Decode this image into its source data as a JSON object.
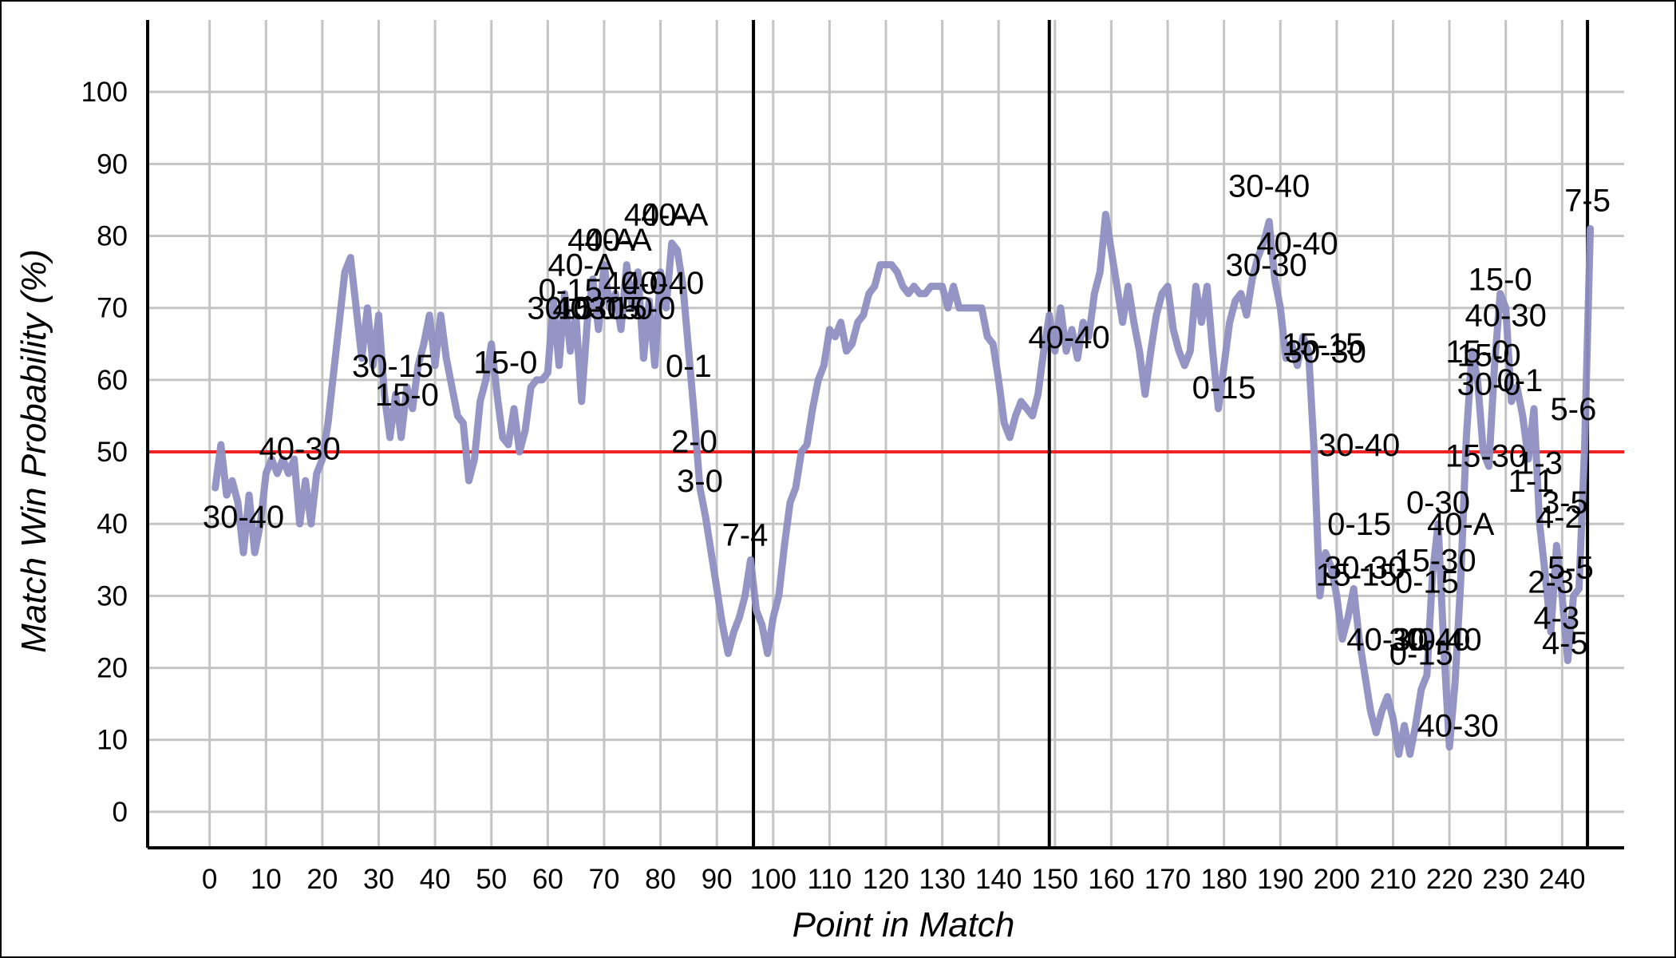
{
  "chart_data": {
    "type": "line",
    "xlabel": "Point in Match",
    "ylabel": "Match Win Probability (%)",
    "xlim": [
      -11,
      251
    ],
    "ylim": [
      -5,
      110
    ],
    "x_ticks": [
      0,
      10,
      20,
      30,
      40,
      50,
      60,
      70,
      80,
      90,
      100,
      110,
      120,
      130,
      140,
      150,
      160,
      170,
      180,
      190,
      200,
      210,
      220,
      230,
      240
    ],
    "y_ticks": [
      0,
      10,
      20,
      30,
      40,
      50,
      60,
      70,
      80,
      90,
      100
    ],
    "grid": true,
    "reference_line": {
      "y": 50,
      "color": "#ee2222"
    },
    "set_boundaries": [
      96.5,
      149,
      244.5
    ],
    "series_color": "#8f8fc2",
    "series": [
      {
        "x": [
          1,
          2,
          3,
          4,
          5,
          6,
          7,
          8,
          9,
          10,
          11,
          12,
          13,
          14,
          15,
          16,
          17,
          18,
          19,
          20,
          21,
          22,
          23,
          24,
          25,
          26,
          27,
          28,
          29,
          30,
          31,
          32,
          33,
          34,
          35,
          36,
          37,
          38,
          39,
          40,
          41,
          42,
          43,
          44,
          45,
          46,
          47,
          48,
          49,
          50,
          51,
          52,
          53,
          54,
          55,
          56,
          57,
          58,
          59,
          60,
          61,
          62,
          63,
          64,
          65,
          66,
          67,
          68,
          69,
          70,
          71,
          72,
          73,
          74,
          75,
          76,
          77,
          78,
          79,
          80,
          81,
          82,
          83,
          84,
          85,
          86,
          87,
          88,
          89,
          90,
          91,
          92,
          93,
          94,
          95,
          96,
          97,
          98,
          99,
          100,
          101,
          102,
          103,
          104,
          105,
          106,
          107,
          108,
          109,
          110,
          111,
          112,
          113,
          114,
          115,
          116,
          117,
          118,
          119,
          120,
          121,
          122,
          123,
          124,
          125,
          126,
          127,
          128,
          129,
          130,
          131,
          132,
          133,
          134,
          135,
          136,
          137,
          138,
          139,
          140,
          141,
          142,
          143,
          144,
          145,
          146,
          147,
          148,
          149,
          150,
          151,
          152,
          153,
          154,
          155,
          156,
          157,
          158,
          159,
          160,
          161,
          162,
          163,
          164,
          165,
          166,
          167,
          168,
          169,
          170,
          171,
          172,
          173,
          174,
          175,
          176,
          177,
          178,
          179,
          180,
          181,
          182,
          183,
          184,
          185,
          186,
          187,
          188,
          189,
          190,
          191,
          192,
          193,
          194,
          195,
          196,
          197,
          198,
          199,
          200,
          201,
          202,
          203,
          204,
          205,
          206,
          207,
          208,
          209,
          210,
          211,
          212,
          213,
          214,
          215,
          216,
          217,
          218,
          219,
          220,
          221,
          222,
          223,
          224,
          225,
          226,
          227,
          228,
          229,
          230,
          231,
          232,
          233,
          234,
          235,
          236,
          237,
          238,
          239,
          240,
          241,
          242,
          243,
          244,
          245
        ],
        "y": [
          45,
          51,
          44,
          46,
          43,
          36,
          44,
          36,
          40,
          47,
          49,
          47,
          49,
          47,
          49,
          40,
          46,
          40,
          47,
          49,
          54,
          61,
          68,
          75,
          77,
          70,
          63,
          70,
          62,
          69,
          58,
          52,
          58,
          52,
          59,
          56,
          62,
          65,
          69,
          62,
          69,
          63,
          59,
          55,
          54,
          46,
          49,
          57,
          60,
          65,
          58,
          52,
          51,
          56,
          50,
          53,
          59,
          60,
          60,
          61,
          71,
          62,
          72,
          64,
          69,
          57,
          68,
          74,
          67,
          76,
          70,
          72,
          67,
          76,
          70,
          75,
          63,
          71,
          62,
          75,
          70,
          79,
          78,
          73,
          64,
          55,
          45,
          41,
          36,
          31,
          26,
          22,
          25,
          27,
          30,
          35,
          28,
          26,
          22,
          27,
          30,
          37,
          43,
          45,
          50,
          51,
          56,
          60,
          62,
          67,
          66,
          68,
          64,
          65,
          68,
          69,
          72,
          73,
          76,
          76,
          76,
          75,
          73,
          72,
          73,
          72,
          72,
          73,
          73,
          73,
          70,
          73,
          70,
          70,
          70,
          70,
          70,
          66,
          65,
          60,
          54,
          52,
          55,
          57,
          56,
          55,
          58,
          64,
          69,
          64,
          70,
          64,
          67,
          63,
          68,
          66,
          72,
          75,
          83,
          78,
          73,
          68,
          73,
          68,
          64,
          58,
          64,
          69,
          72,
          73,
          67,
          64,
          62,
          64,
          73,
          68,
          73,
          64,
          56,
          62,
          68,
          71,
          72,
          69,
          74,
          77,
          79,
          82,
          74,
          70,
          63,
          65,
          62,
          66,
          64,
          50,
          30,
          36,
          34,
          30,
          24,
          27,
          31,
          24,
          19,
          14,
          11,
          14,
          16,
          13,
          8,
          12,
          8,
          12,
          17,
          19,
          33,
          40,
          23,
          9,
          18,
          32,
          52,
          64,
          60,
          50,
          48,
          62,
          72,
          70,
          57,
          59,
          55,
          49,
          56,
          40,
          33,
          25,
          37,
          30,
          21,
          30,
          31,
          51,
          81
        ]
      }
    ],
    "annotations": [
      {
        "text": "30-40",
        "x": 6,
        "y": 41
      },
      {
        "text": "40-30",
        "x": 16,
        "y": 50.5
      },
      {
        "text": "30-15",
        "x": 32.5,
        "y": 62
      },
      {
        "text": "15-0",
        "x": 35,
        "y": 58
      },
      {
        "text": "15-0",
        "x": 52.5,
        "y": 62.5
      },
      {
        "text": "30-0",
        "x": 62,
        "y": 70
      },
      {
        "text": "0-15",
        "x": 64,
        "y": 72.5
      },
      {
        "text": "40-0",
        "x": 66.5,
        "y": 70
      },
      {
        "text": "40-A",
        "x": 66,
        "y": 76
      },
      {
        "text": "40-A",
        "x": 69.5,
        "y": 79.5
      },
      {
        "text": "40-A",
        "x": 72.5,
        "y": 79.5
      },
      {
        "text": "15-15",
        "x": 69,
        "y": 70
      },
      {
        "text": "30-0",
        "x": 73,
        "y": 70
      },
      {
        "text": "40-0",
        "x": 75.5,
        "y": 73.5
      },
      {
        "text": "15-0",
        "x": 77,
        "y": 70
      },
      {
        "text": "40-40",
        "x": 80.5,
        "y": 73.5
      },
      {
        "text": "40-A",
        "x": 79.5,
        "y": 83
      },
      {
        "text": "40-A",
        "x": 82.5,
        "y": 83
      },
      {
        "text": "0-1",
        "x": 85,
        "y": 62
      },
      {
        "text": "2-0",
        "x": 86,
        "y": 51.5
      },
      {
        "text": "3-0",
        "x": 87,
        "y": 46
      },
      {
        "text": "7-4",
        "x": 95,
        "y": 38.5
      },
      {
        "text": "40-40",
        "x": 152.5,
        "y": 66
      },
      {
        "text": "0-15",
        "x": 180,
        "y": 59
      },
      {
        "text": "30-40",
        "x": 188,
        "y": 87
      },
      {
        "text": "40-40",
        "x": 193,
        "y": 79
      },
      {
        "text": "30-30",
        "x": 187.5,
        "y": 76
      },
      {
        "text": "15-15",
        "x": 197.5,
        "y": 65
      },
      {
        "text": "30-30",
        "x": 198,
        "y": 64
      },
      {
        "text": "30-40",
        "x": 204,
        "y": 51
      },
      {
        "text": "0-15",
        "x": 204,
        "y": 40
      },
      {
        "text": "30-30",
        "x": 205,
        "y": 34
      },
      {
        "text": "15-15",
        "x": 203.5,
        "y": 33
      },
      {
        "text": "15-30",
        "x": 217.5,
        "y": 35
      },
      {
        "text": "0-15",
        "x": 216,
        "y": 32
      },
      {
        "text": "40-30",
        "x": 209,
        "y": 24
      },
      {
        "text": "30-40",
        "x": 216.5,
        "y": 24
      },
      {
        "text": "0-15",
        "x": 215,
        "y": 22
      },
      {
        "text": "40-40",
        "x": 218.5,
        "y": 24
      },
      {
        "text": "40-30",
        "x": 221.5,
        "y": 12
      },
      {
        "text": "0-30",
        "x": 218,
        "y": 43
      },
      {
        "text": "40-A",
        "x": 222,
        "y": 40
      },
      {
        "text": "15-0",
        "x": 229,
        "y": 74
      },
      {
        "text": "40-30",
        "x": 230,
        "y": 69
      },
      {
        "text": "15-0",
        "x": 225,
        "y": 64
      },
      {
        "text": "15-0",
        "x": 227,
        "y": 63.5
      },
      {
        "text": "30-0",
        "x": 227,
        "y": 59.5
      },
      {
        "text": "0-1",
        "x": 232.5,
        "y": 60
      },
      {
        "text": "5-6",
        "x": 242,
        "y": 56
      },
      {
        "text": "15-30",
        "x": 226.5,
        "y": 49.5
      },
      {
        "text": "1-3",
        "x": 236,
        "y": 48.5
      },
      {
        "text": "1-1",
        "x": 234.5,
        "y": 46
      },
      {
        "text": "3-5",
        "x": 240.5,
        "y": 43
      },
      {
        "text": "4-2",
        "x": 239.5,
        "y": 41
      },
      {
        "text": "7-5",
        "x": 244.5,
        "y": 85
      },
      {
        "text": "5-5",
        "x": 241.5,
        "y": 34
      },
      {
        "text": "2-3",
        "x": 238,
        "y": 32
      },
      {
        "text": "4-3",
        "x": 239,
        "y": 27
      },
      {
        "text": "4-5",
        "x": 240.5,
        "y": 23.5
      }
    ]
  }
}
